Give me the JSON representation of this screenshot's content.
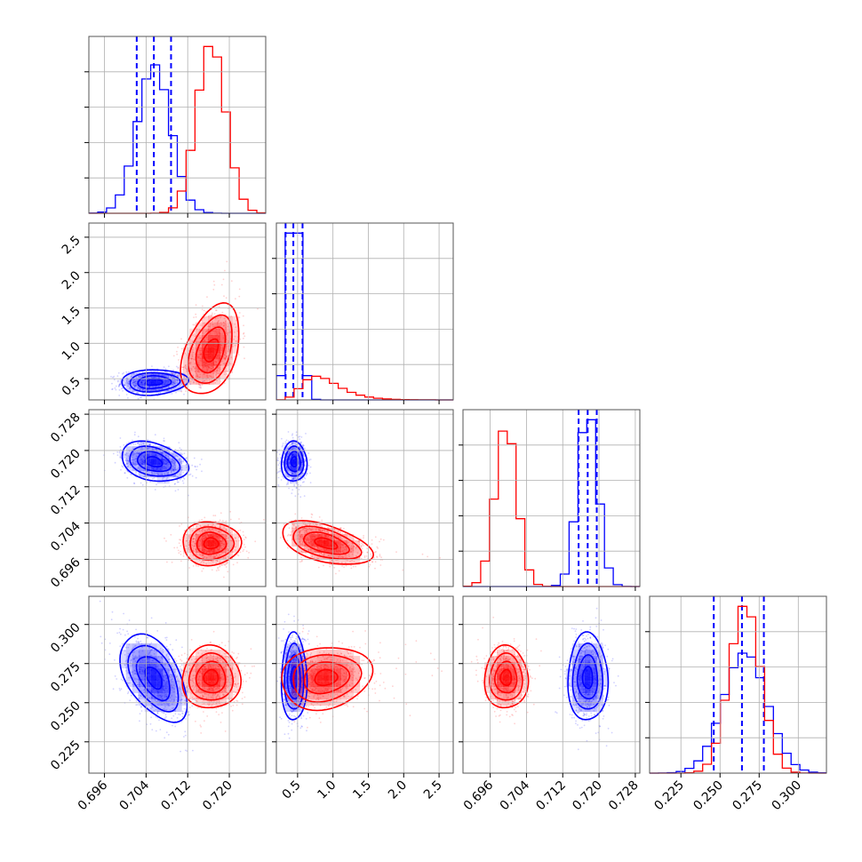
{
  "chart_data": {
    "type": "corner",
    "colors": {
      "a": "#0000ff",
      "b": "#ff0000"
    },
    "params": [
      {
        "lim": [
          0.693,
          0.727
        ],
        "ticks": [
          0.696,
          0.704,
          0.712,
          0.72
        ],
        "tick_labels": [
          "0.696",
          "0.704",
          "0.712",
          "0.720"
        ]
      },
      {
        "lim": [
          0.2,
          2.7
        ],
        "ticks": [
          0.5,
          1.0,
          1.5,
          2.0,
          2.5
        ],
        "tick_labels": [
          "0.5",
          "1.0",
          "1.5",
          "2.0",
          "2.5"
        ]
      },
      {
        "lim": [
          0.69,
          0.729
        ],
        "ticks": [
          0.696,
          0.704,
          0.712,
          0.72,
          0.728
        ],
        "tick_labels": [
          "0.696",
          "0.704",
          "0.712",
          "0.720",
          "0.728"
        ]
      },
      {
        "lim": [
          0.205,
          0.318
        ],
        "ticks": [
          0.225,
          0.25,
          0.275,
          0.3
        ],
        "tick_labels": [
          "0.225",
          "0.250",
          "0.275",
          "0.300"
        ]
      }
    ],
    "series": [
      {
        "key": "a",
        "color": "#0000ff",
        "mean": [
          0.7055,
          0.45,
          0.7175,
          0.266
        ],
        "std": [
          0.0032,
          0.09,
          0.0022,
          0.014
        ],
        "rho": [
          [
            1,
            0.1,
            -0.3,
            -0.5
          ],
          [
            0.1,
            1,
            0.0,
            0.0
          ],
          [
            -0.3,
            0.0,
            1,
            0.0
          ],
          [
            -0.5,
            0.0,
            0.0,
            1
          ]
        ],
        "quantiles": [
          [
            0.7022,
            0.7055,
            0.7088
          ],
          [
            0.33,
            0.44,
            0.57
          ],
          [
            0.7155,
            0.7175,
            0.7195
          ],
          [
            0.246,
            0.264,
            0.278
          ]
        ]
      },
      {
        "key": "b",
        "color": "#ff0000",
        "mean": [
          0.7165,
          0.9,
          0.6995,
          0.266
        ],
        "std": [
          0.0028,
          0.32,
          0.0024,
          0.01
        ],
        "rho": [
          [
            1,
            0.4,
            0.0,
            0.0
          ],
          [
            0.4,
            1,
            -0.5,
            0.15
          ],
          [
            0.0,
            -0.5,
            1,
            0.0
          ],
          [
            0.0,
            0.15,
            0.0,
            1
          ]
        ],
        "quantiles": []
      }
    ],
    "hist_peaks_note": ""
  }
}
